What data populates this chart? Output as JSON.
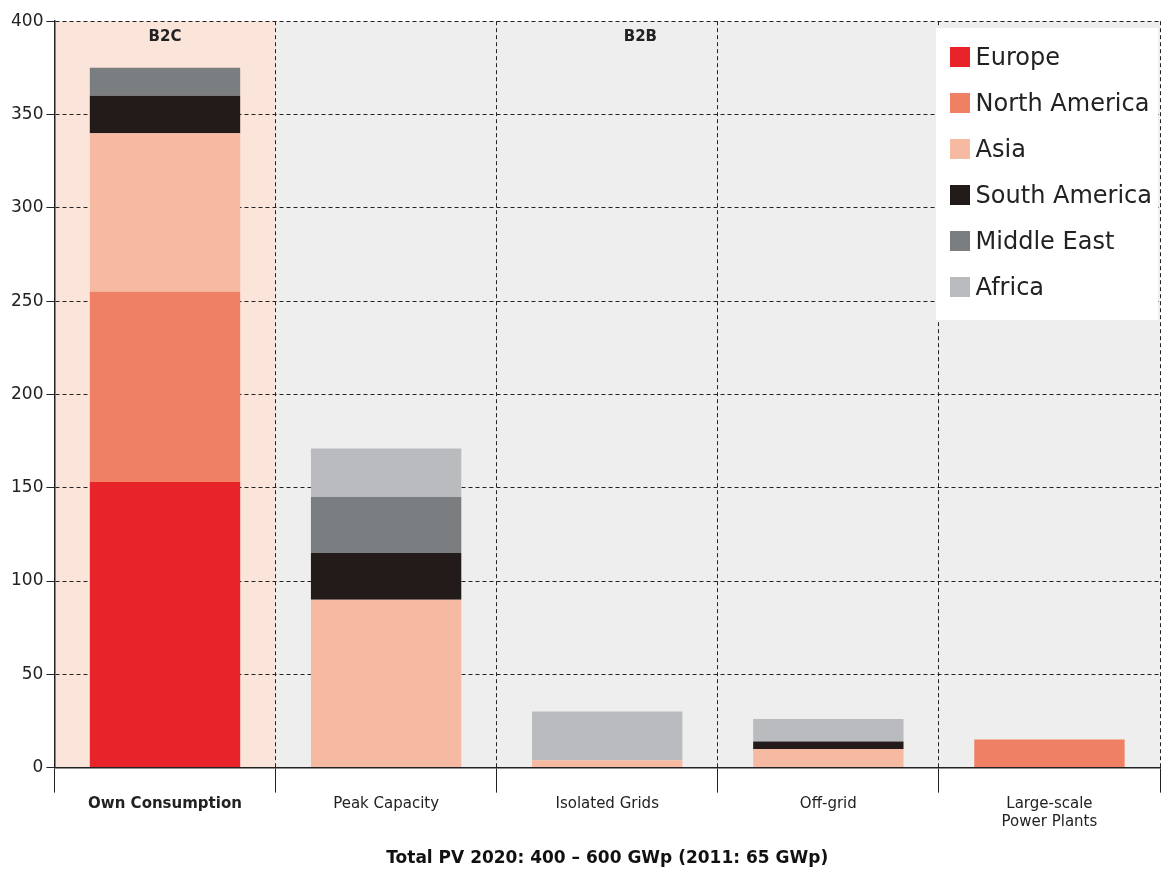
{
  "chart_data": {
    "type": "bar",
    "stacked": true,
    "xlabel": "Total PV 2020: 400 – 600 GWp (2011: 65 GWp)",
    "categories": [
      "Own Consumption",
      "Peak Capacity",
      "Isolated Grids",
      "Off-grid",
      "Large-scale Power Plants"
    ],
    "series": [
      {
        "name": "Europe",
        "color": "#e8232a",
        "values": [
          153,
          0,
          0,
          0,
          0
        ]
      },
      {
        "name": "North America",
        "color": "#ef8063",
        "values": [
          102,
          0,
          0,
          0,
          15
        ]
      },
      {
        "name": "Asia",
        "color": "#f6b9a1",
        "values": [
          85,
          90,
          4,
          10,
          0
        ]
      },
      {
        "name": "South America",
        "color": "#231a1a",
        "values": [
          20,
          25,
          0,
          4,
          0
        ]
      },
      {
        "name": "Middle East",
        "color": "#7b7e81",
        "values": [
          15,
          30,
          0,
          0,
          0
        ]
      },
      {
        "name": "Africa",
        "color": "#b9bbbe",
        "values": [
          0,
          26,
          26,
          12,
          0
        ]
      }
    ],
    "ylim": [
      0,
      400
    ],
    "yticks": [
      0,
      50,
      100,
      150,
      200,
      250,
      300,
      350,
      400
    ],
    "grid": true,
    "legend": "top right",
    "bands": [
      {
        "axis": "x",
        "from": "Own Consumption",
        "to": "Own Consumption",
        "label": "B2C",
        "color": "#fbe5da"
      },
      {
        "axis": "x",
        "from": "Peak Capacity",
        "to": "Large-scale Power Plants",
        "label": "B2B",
        "color": "#eeeeee"
      }
    ]
  }
}
